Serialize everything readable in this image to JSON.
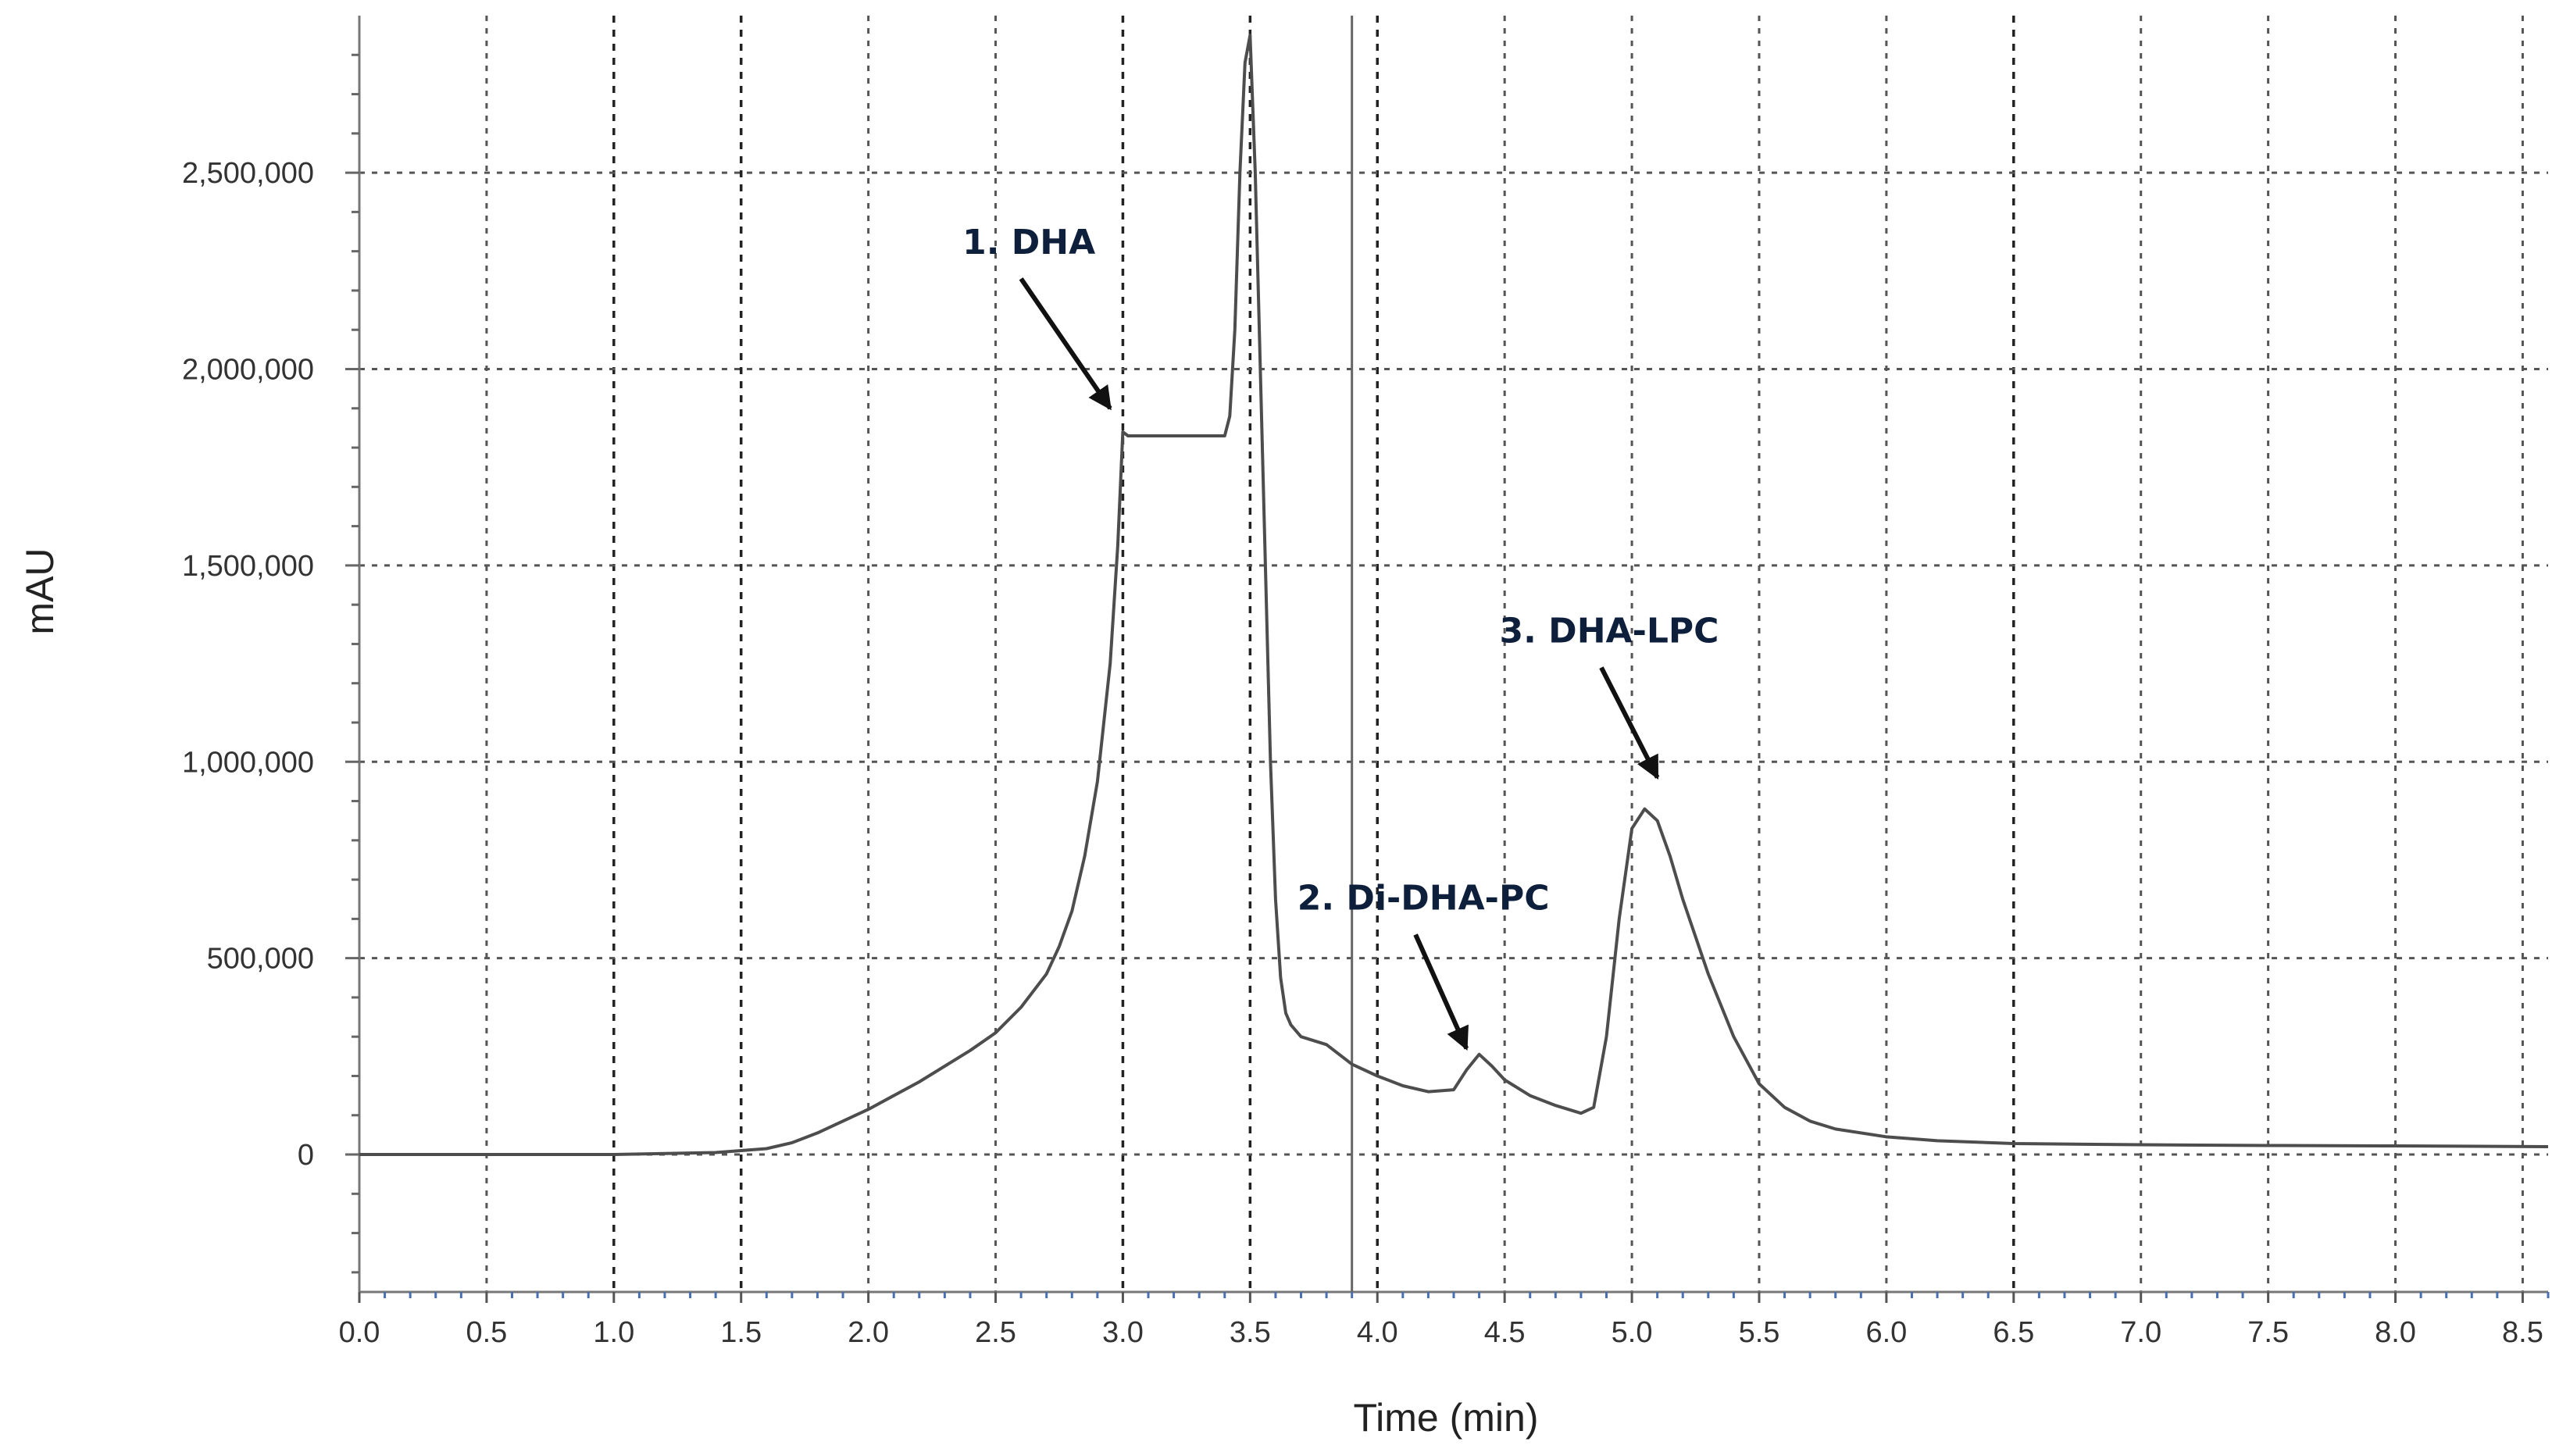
{
  "chart_data": {
    "type": "line",
    "title": "",
    "xlabel": "Time (min)",
    "ylabel": "mAU",
    "xlim": [
      0.0,
      8.6
    ],
    "ylim": [
      -350000,
      2900000
    ],
    "grid": true,
    "x_ticks": [
      0.0,
      0.5,
      1.0,
      1.5,
      2.0,
      2.5,
      3.0,
      3.5,
      4.0,
      4.5,
      5.0,
      5.5,
      6.0,
      6.5,
      7.0,
      7.5,
      8.0,
      8.5
    ],
    "x_tick_labels": [
      "0.0",
      "0.5",
      "1.0",
      "1.5",
      "2.0",
      "2.5",
      "3.0",
      "3.5",
      "4.0",
      "4.5",
      "5.0",
      "5.5",
      "6.0",
      "6.5",
      "7.0",
      "7.5",
      "8.0",
      "8.5"
    ],
    "y_ticks": [
      0,
      500000,
      1000000,
      1500000,
      2000000,
      2500000
    ],
    "y_tick_labels": [
      "0",
      "500,000",
      "1,000,000",
      "1,500,000",
      "2,000,000",
      "2,500,000"
    ],
    "marker_line_x": 3.9,
    "series": [
      {
        "name": "chromatogram",
        "x": [
          0.0,
          1.0,
          1.4,
          1.6,
          1.7,
          1.8,
          1.9,
          2.0,
          2.2,
          2.4,
          2.5,
          2.6,
          2.7,
          2.75,
          2.8,
          2.85,
          2.9,
          2.95,
          2.98,
          3.0,
          3.02,
          3.05,
          3.1,
          3.2,
          3.3,
          3.4,
          3.42,
          3.44,
          3.46,
          3.48,
          3.5,
          3.52,
          3.54,
          3.56,
          3.58,
          3.6,
          3.62,
          3.64,
          3.66,
          3.7,
          3.8,
          3.9,
          4.0,
          4.1,
          4.2,
          4.3,
          4.35,
          4.4,
          4.45,
          4.5,
          4.6,
          4.7,
          4.8,
          4.85,
          4.9,
          4.95,
          5.0,
          5.05,
          5.1,
          5.15,
          5.2,
          5.3,
          5.4,
          5.5,
          5.6,
          5.7,
          5.8,
          6.0,
          6.2,
          6.5,
          7.0,
          7.5,
          8.0,
          8.6
        ],
        "values": [
          0,
          0,
          5000,
          15000,
          30000,
          55000,
          85000,
          115000,
          185000,
          265000,
          310000,
          375000,
          460000,
          530000,
          620000,
          760000,
          950000,
          1250000,
          1550000,
          1840000,
          1830000,
          1830000,
          1830000,
          1830000,
          1830000,
          1830000,
          1880000,
          2100000,
          2500000,
          2780000,
          2850000,
          2500000,
          2000000,
          1500000,
          1000000,
          650000,
          450000,
          360000,
          330000,
          300000,
          280000,
          230000,
          200000,
          175000,
          160000,
          165000,
          215000,
          255000,
          225000,
          190000,
          150000,
          125000,
          105000,
          120000,
          300000,
          600000,
          830000,
          880000,
          850000,
          760000,
          650000,
          460000,
          300000,
          180000,
          120000,
          85000,
          65000,
          45000,
          35000,
          28000,
          25000,
          23000,
          22000,
          20000
        ]
      }
    ],
    "annotations": [
      {
        "label": "1. DHA",
        "target_x": 2.95,
        "target_y": 1900000,
        "from_x": 2.6,
        "from_y": 2230000
      },
      {
        "label": "2. Di-DHA-PC",
        "target_x": 4.35,
        "target_y": 270000,
        "from_x": 4.15,
        "from_y": 560000
      },
      {
        "label": "3. DHA-LPC",
        "target_x": 5.1,
        "target_y": 960000,
        "from_x": 4.88,
        "from_y": 1240000
      }
    ]
  }
}
